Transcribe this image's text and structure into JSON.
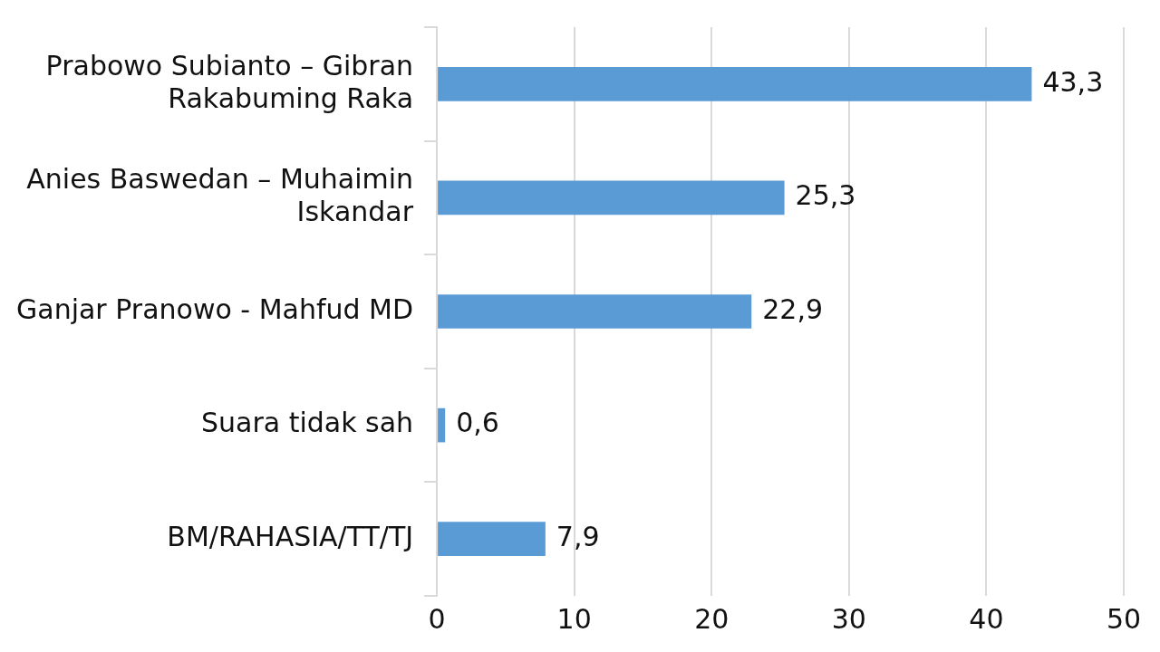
{
  "chart_data": {
    "type": "bar",
    "orientation": "horizontal",
    "categories": [
      "Prabowo Subianto – Gibran Rakabuming Raka",
      "Anies Baswedan – Muhaimin Iskandar",
      "Ganjar Pranowo - Mahfud MD",
      "Suara tidak sah",
      "BM/RAHASIA/TT/TJ"
    ],
    "values": [
      43.3,
      25.3,
      22.9,
      0.6,
      7.9
    ],
    "value_labels": [
      "43,3",
      "25,3",
      "22,9",
      "0,6",
      "7,9"
    ],
    "color": "#5b9bd5",
    "xlim": [
      0,
      50
    ],
    "xticks": [
      0,
      10,
      20,
      30,
      40,
      50
    ],
    "grid": "x",
    "legend": false
  }
}
